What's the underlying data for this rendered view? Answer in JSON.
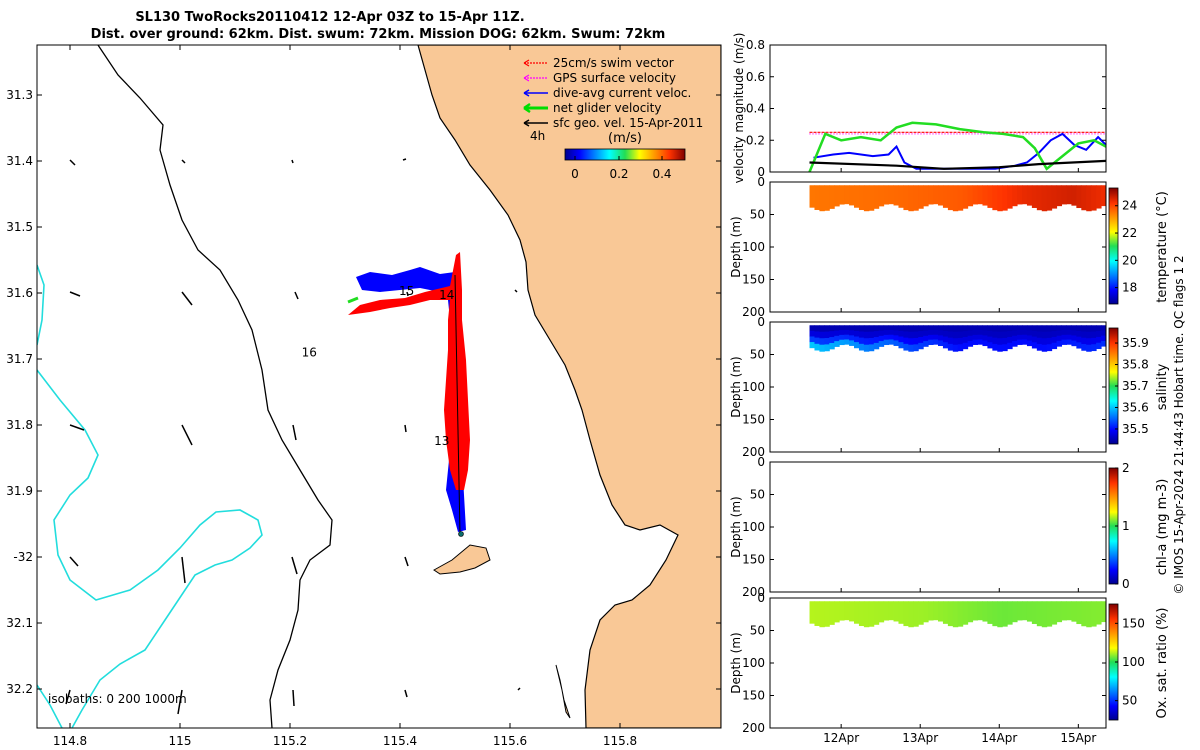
{
  "header": {
    "title_line1": "SL130 TwoRocks20110412 12-Apr 03Z to 15-Apr 11Z.",
    "title_line2": "Dist. over ground: 62km. Dist. swum: 72km. Mission DOG: 62km. Swum: 72km"
  },
  "map": {
    "xticks": [
      114.8,
      115,
      115.2,
      115.4,
      115.6,
      115.8
    ],
    "xtick_labels": [
      "114.8",
      "115",
      "115.2",
      "115.4",
      "115.6",
      "115.8"
    ],
    "yticks": [
      31.3,
      31.4,
      31.5,
      31.6,
      31.7,
      31.8,
      31.9,
      32.0,
      32.1,
      32.2
    ],
    "ytick_labels": [
      "31.3",
      "31.4",
      "31.5",
      "31.6",
      "31.7",
      "31.8",
      "31.9",
      "-32",
      "32.1",
      "32.2"
    ],
    "legend": [
      {
        "label": "25cm/s swim vector",
        "color": "#ff0000"
      },
      {
        "label": "GPS surface velocity",
        "color": "#ff00ff"
      },
      {
        "label": "dive-avg current veloc.",
        "color": "#0000ff"
      },
      {
        "label": "net glider velocity",
        "color": "#00dd00"
      },
      {
        "label": "sfc geo. vel. 15-Apr-2011",
        "color": "#000000"
      }
    ],
    "colorbar": {
      "unit": "(m/s)",
      "ticks": [
        "0",
        "0.2",
        "0.4"
      ],
      "interval": "4h"
    },
    "day_labels": [
      {
        "text": "14",
        "lon": 115.485,
        "lat": 31.603
      },
      {
        "text": "15",
        "lon": 115.412,
        "lat": 31.597
      },
      {
        "text": "16",
        "lon": 115.235,
        "lat": 31.69
      },
      {
        "text": "13",
        "lon": 115.476,
        "lat": 31.824
      }
    ],
    "isobaths_label": "isobaths: 0   200  1000m",
    "colors": {
      "land": "#f9c896",
      "isobath": "#00dddd",
      "track_blue": "#0000ff",
      "swim_red": "#ff0000"
    }
  },
  "velocity_panel": {
    "ylabel": "velocity magnitude (m/s)",
    "yticks": [
      "0",
      "0.2",
      "0.4",
      "0.6",
      "0.8"
    ]
  },
  "depth_panels": [
    {
      "ylabel": "Depth (m)",
      "cbar_label": "temperature (°C)",
      "cbar_ticks": [
        "18",
        "20",
        "22",
        "24"
      ],
      "cbar_range": [
        16.8,
        25.3
      ],
      "colormap": "jet-like"
    },
    {
      "ylabel": "Depth (m)",
      "cbar_label": "salinity",
      "cbar_ticks": [
        "35.5",
        "35.6",
        "35.7",
        "35.8",
        "35.9"
      ],
      "cbar_range": [
        35.43,
        35.97
      ],
      "colormap": "jet-like"
    },
    {
      "ylabel": "Depth (m)",
      "cbar_label": "chl-a (mg m-3)",
      "cbar_ticks": [
        "0",
        "1",
        "2"
      ],
      "cbar_range": [
        0,
        2
      ],
      "colormap": "jet-like"
    },
    {
      "ylabel": "Depth (m)",
      "cbar_label": "Ox. sat. ratio (%)",
      "cbar_ticks": [
        "50",
        "100",
        "150"
      ],
      "cbar_range": [
        25,
        175
      ],
      "colormap": "jet-like"
    }
  ],
  "depth_ticks": [
    "0",
    "50",
    "100",
    "150",
    "200"
  ],
  "time_axis": {
    "labels": [
      "12Apr",
      "13Apr",
      "14Apr",
      "15Apr"
    ]
  },
  "side_note": "© IMOS 15-Apr-2024 21:44:43 Hobart time. QC flags 1  2",
  "chart_data": [
    {
      "type": "line",
      "panel": "velocity magnitude",
      "x_unit": "day of April 2011",
      "xlim": [
        11.6,
        15.85
      ],
      "ylim": [
        0,
        0.8
      ],
      "series": [
        {
          "name": "25cm/s swim vector",
          "color": "#ff0000",
          "x": [
            12.1,
            15.85
          ],
          "y": [
            0.25,
            0.25
          ]
        },
        {
          "name": "GPS surface velocity",
          "color": "#ff00ff",
          "x": [
            12.1,
            15.85
          ],
          "y": [
            0.24,
            0.24
          ]
        },
        {
          "name": "dive-avg current veloc.",
          "color": "#0000ff",
          "x": [
            12.15,
            12.4,
            12.6,
            12.9,
            13.1,
            13.2,
            13.3,
            13.45,
            13.7,
            13.95,
            14.2,
            14.45,
            14.7,
            14.85,
            15.0,
            15.15,
            15.3,
            15.45,
            15.6,
            15.75,
            15.85
          ],
          "y": [
            0.09,
            0.11,
            0.12,
            0.1,
            0.11,
            0.16,
            0.06,
            0.02,
            0.02,
            0.02,
            0.02,
            0.02,
            0.04,
            0.06,
            0.12,
            0.2,
            0.24,
            0.17,
            0.14,
            0.22,
            0.17
          ]
        },
        {
          "name": "net glider velocity",
          "color": "#22dd22",
          "x": [
            12.1,
            12.3,
            12.5,
            12.75,
            13.0,
            13.2,
            13.4,
            13.7,
            14.0,
            14.3,
            14.55,
            14.8,
            14.95,
            15.1,
            15.3,
            15.5,
            15.7,
            15.85
          ],
          "y": [
            0.0,
            0.24,
            0.2,
            0.22,
            0.2,
            0.28,
            0.31,
            0.3,
            0.27,
            0.25,
            0.24,
            0.22,
            0.15,
            0.02,
            0.1,
            0.18,
            0.2,
            0.16
          ]
        },
        {
          "name": "sfc geo. vel. 15-Apr-2011",
          "color": "#000000",
          "x": [
            12.1,
            13.2,
            13.8,
            14.5,
            15.0,
            15.85
          ],
          "y": [
            0.06,
            0.04,
            0.02,
            0.03,
            0.05,
            0.07
          ]
        }
      ]
    },
    {
      "type": "heatmap",
      "panel": "temperature (°C)",
      "x_unit": "day of April 2011",
      "xlim": [
        11.6,
        15.85
      ],
      "ylim": [
        200,
        0
      ],
      "data_x_range": [
        12.1,
        15.85
      ],
      "data_depth_max": [
        34,
        45
      ],
      "value_by_time": [
        [
          12.1,
          23.5
        ],
        [
          13.0,
          23.6
        ],
        [
          14.0,
          23.8
        ],
        [
          14.8,
          24.4
        ],
        [
          15.4,
          24.6
        ],
        [
          15.85,
          24.3
        ]
      ],
      "vmin": 16.8,
      "vmax": 25.3
    },
    {
      "type": "heatmap",
      "panel": "salinity",
      "x_unit": "day of April 2011",
      "xlim": [
        11.6,
        15.85
      ],
      "ylim": [
        200,
        0
      ],
      "data_x_range": [
        12.1,
        15.85
      ],
      "data_depth_max": [
        34,
        45
      ],
      "surface_value": 35.45,
      "deep_value_by_time": [
        [
          12.1,
          35.6
        ],
        [
          13.0,
          35.55
        ],
        [
          14.0,
          35.5
        ],
        [
          15.0,
          35.5
        ],
        [
          15.85,
          35.52
        ]
      ],
      "vmin": 35.43,
      "vmax": 35.97
    },
    {
      "type": "heatmap",
      "panel": "chl-a (mg m-3)",
      "x_unit": "day of April 2011",
      "xlim": [
        11.6,
        15.85
      ],
      "ylim": [
        200,
        0
      ],
      "values": [],
      "vmin": 0,
      "vmax": 2
    },
    {
      "type": "heatmap",
      "panel": "Ox. sat. ratio (%)",
      "x_unit": "day of April 2011",
      "xlim": [
        11.6,
        15.85
      ],
      "ylim": [
        200,
        0
      ],
      "data_x_range": [
        12.1,
        15.85
      ],
      "data_depth_max": [
        34,
        45
      ],
      "value_by_time": [
        [
          12.1,
          112
        ],
        [
          13.5,
          110
        ],
        [
          14.5,
          106
        ],
        [
          15.85,
          108
        ]
      ],
      "vmin": 25,
      "vmax": 175
    }
  ]
}
